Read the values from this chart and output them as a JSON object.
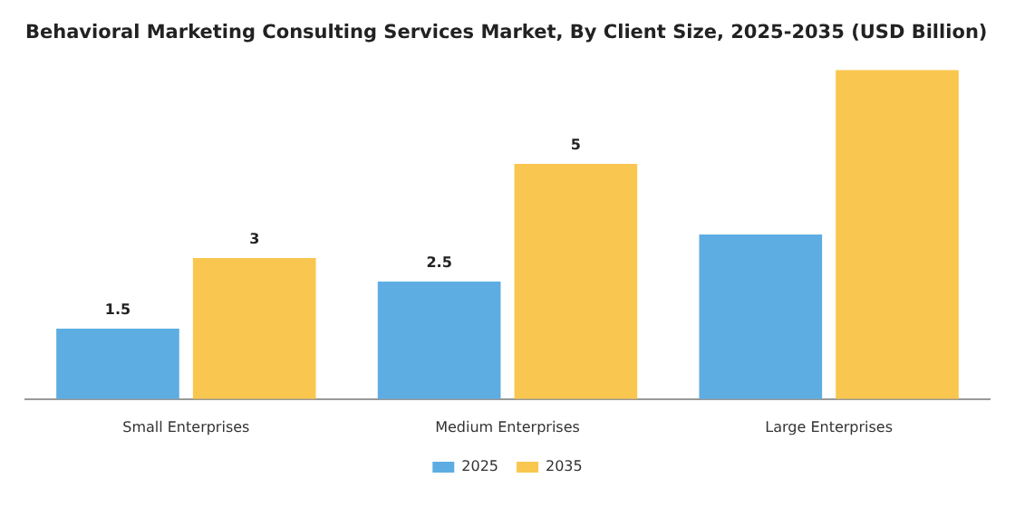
{
  "chart_data": {
    "type": "bar",
    "title": "Behavioral Marketing Consulting Services Market, By Client Size, 2025-2035 (USD Billion)",
    "categories": [
      "Small Enterprises",
      "Medium Enterprises",
      "Large Enterprises"
    ],
    "series": [
      {
        "name": "2025",
        "color": "#5dade2",
        "values": [
          1.5,
          2.5,
          3.5
        ],
        "value_labels": [
          "1.5",
          "2.5",
          null
        ]
      },
      {
        "name": "2035",
        "color": "#f9c74f",
        "values": [
          3,
          5,
          7
        ],
        "value_labels": [
          "3",
          "5",
          null
        ]
      }
    ],
    "legend": "bottom",
    "grid": false
  }
}
